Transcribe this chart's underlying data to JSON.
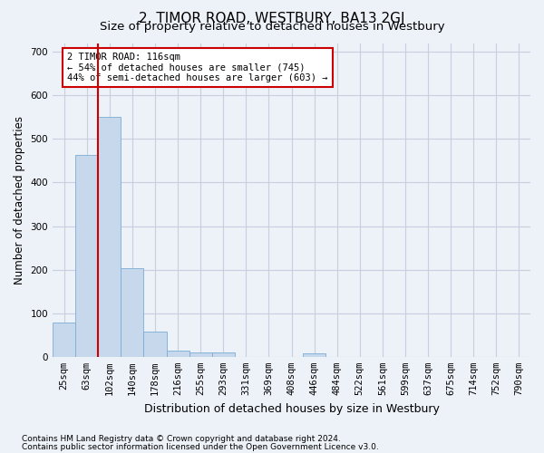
{
  "title": "2, TIMOR ROAD, WESTBURY, BA13 2GJ",
  "subtitle": "Size of property relative to detached houses in Westbury",
  "xlabel": "Distribution of detached houses by size in Westbury",
  "ylabel": "Number of detached properties",
  "footnote1": "Contains HM Land Registry data © Crown copyright and database right 2024.",
  "footnote2": "Contains public sector information licensed under the Open Government Licence v3.0.",
  "annotation_line1": "2 TIMOR ROAD: 116sqm",
  "annotation_line2": "← 54% of detached houses are smaller (745)",
  "annotation_line3": "44% of semi-detached houses are larger (603) →",
  "bar_color": "#c8d8ec",
  "bar_edgecolor": "#7aadd4",
  "vline_color": "#cc0000",
  "bin_labels": [
    "25sqm",
    "63sqm",
    "102sqm",
    "140sqm",
    "178sqm",
    "216sqm",
    "255sqm",
    "293sqm",
    "331sqm",
    "369sqm",
    "408sqm",
    "446sqm",
    "484sqm",
    "522sqm",
    "561sqm",
    "599sqm",
    "637sqm",
    "675sqm",
    "714sqm",
    "752sqm",
    "790sqm"
  ],
  "bar_heights": [
    78,
    463,
    550,
    203,
    57,
    15,
    10,
    10,
    0,
    0,
    0,
    8,
    0,
    0,
    0,
    0,
    0,
    0,
    0,
    0,
    0
  ],
  "ylim": [
    0,
    720
  ],
  "yticks": [
    0,
    100,
    200,
    300,
    400,
    500,
    600,
    700
  ],
  "background_color": "#edf1f8",
  "plot_bg_color": "#edf1f8",
  "grid_color": "#c8cfe0",
  "annotation_box_facecolor": "white",
  "annotation_box_edgecolor": "#cc0000",
  "title_fontsize": 11,
  "subtitle_fontsize": 9.5,
  "xlabel_fontsize": 9,
  "ylabel_fontsize": 8.5,
  "tick_fontsize": 7.5,
  "annotation_fontsize": 7.5,
  "footnote_fontsize": 6.5
}
